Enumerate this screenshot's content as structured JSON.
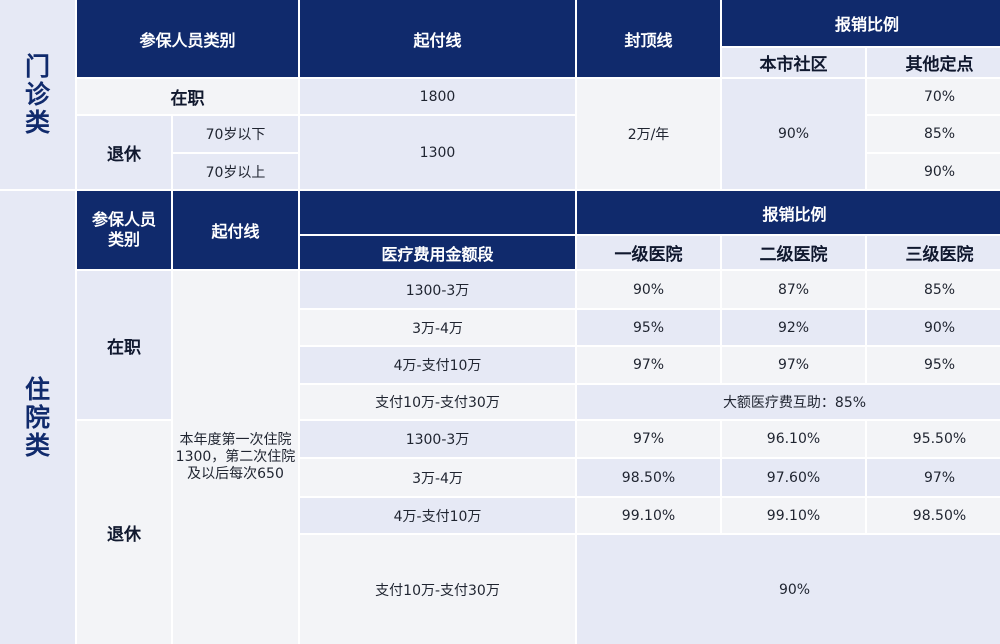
{
  "outpatient": {
    "side_label": "门诊类",
    "header": {
      "category": "参保人员类别",
      "deductible": "起付线",
      "cap": "封顶线",
      "reimbursement": "报销比例",
      "local_community": "本市社区",
      "other_designated": "其他定点"
    },
    "employed": {
      "label": "在职",
      "deductible": "1800",
      "other_rate": "70%"
    },
    "retired": {
      "label": "退休",
      "under70": "70岁以下",
      "over70": "70岁以上",
      "deductible": "1300",
      "under70_rate": "85%",
      "over70_rate": "90%"
    },
    "cap_value": "2万/年",
    "community_rate": "90%"
  },
  "inpatient": {
    "side_label": "住院类",
    "header": {
      "category": "参保人员类别",
      "deductible": "起付线",
      "reimbursement": "报销比例",
      "bands": "医疗费用金额段",
      "level1": "一级医院",
      "level2": "二级医院",
      "level3": "三级医院"
    },
    "deductible_note": "本年度第一次住院1300，第二次住院及以后每次650",
    "employed": {
      "label": "在职",
      "rows": [
        {
          "band": "1300-3万",
          "l1": "90%",
          "l2": "87%",
          "l3": "85%"
        },
        {
          "band": "3万-4万",
          "l1": "95%",
          "l2": "92%",
          "l3": "90%"
        },
        {
          "band": "4万-支付10万",
          "l1": "97%",
          "l2": "97%",
          "l3": "95%"
        }
      ],
      "big_band": "支付10万-支付30万",
      "big_rate": "大额医疗费互助：85%"
    },
    "retired": {
      "label": "退休",
      "rows": [
        {
          "band": "1300-3万",
          "l1": "97%",
          "l2": "96.10%",
          "l3": "95.50%"
        },
        {
          "band": "3万-4万",
          "l1": "98.50%",
          "l2": "97.60%",
          "l3": "97%"
        },
        {
          "band": "4万-支付10万",
          "l1": "99.10%",
          "l2": "99.10%",
          "l3": "98.50%"
        }
      ],
      "big_band": "支付10万-支付30万",
      "big_rate": "90%"
    }
  }
}
